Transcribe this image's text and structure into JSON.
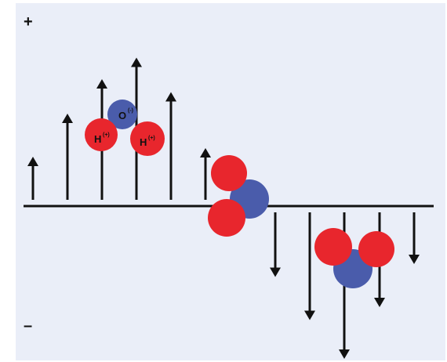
{
  "diagram": {
    "plus_label": "+",
    "minus_label": "–",
    "oxygen_label": "O",
    "oxygen_charge": "(-)",
    "hydrogen_label": "H",
    "hydrogen_charge": "(+)",
    "colors": {
      "background": "#eaeef8",
      "oxygen": "#4a5cab",
      "hydrogen": "#e8262d",
      "arrow": "#111111"
    },
    "field_strengths": [
      1.0,
      2.0,
      2.8,
      3.3,
      2.5,
      1.2,
      -1.5,
      -2.5,
      -3.4,
      -2.2,
      -1.2
    ]
  }
}
